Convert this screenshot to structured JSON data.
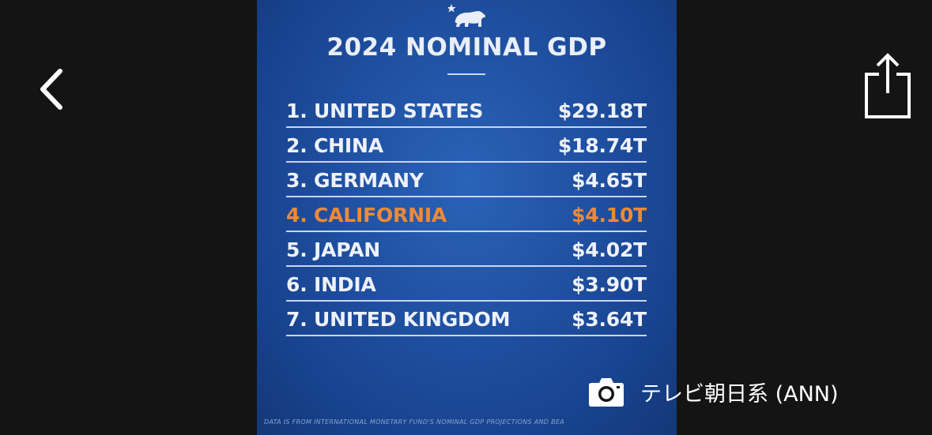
{
  "viewer": {
    "back_icon": "chevron-left-icon",
    "share_icon": "share-icon"
  },
  "poster": {
    "logo_icon": "california-bear-star-icon",
    "title": "2024 NOMINAL GDP",
    "rows": [
      {
        "name": "1. UNITED STATES",
        "value": "$29.18T"
      },
      {
        "name": "2. CHINA",
        "value": "$18.74T"
      },
      {
        "name": "3. GERMANY",
        "value": "$4.65T"
      },
      {
        "name": "4. CALIFORNIA",
        "value": "$4.10T"
      },
      {
        "name": "5. JAPAN",
        "value": "$4.02T"
      },
      {
        "name": "6. INDIA",
        "value": "$3.90T"
      },
      {
        "name": "7. UNITED KINGDOM",
        "value": "$3.64T"
      }
    ],
    "highlight_color": "#ee8a35",
    "background_color": "#1f4fa0",
    "footnote": "DATA IS FROM INTERNATIONAL MONETARY FUND'S NOMINAL GDP PROJECTIONS AND BEA"
  },
  "credit": {
    "icon": "camera-icon",
    "text": "テレビ朝日系 (ANN)"
  }
}
